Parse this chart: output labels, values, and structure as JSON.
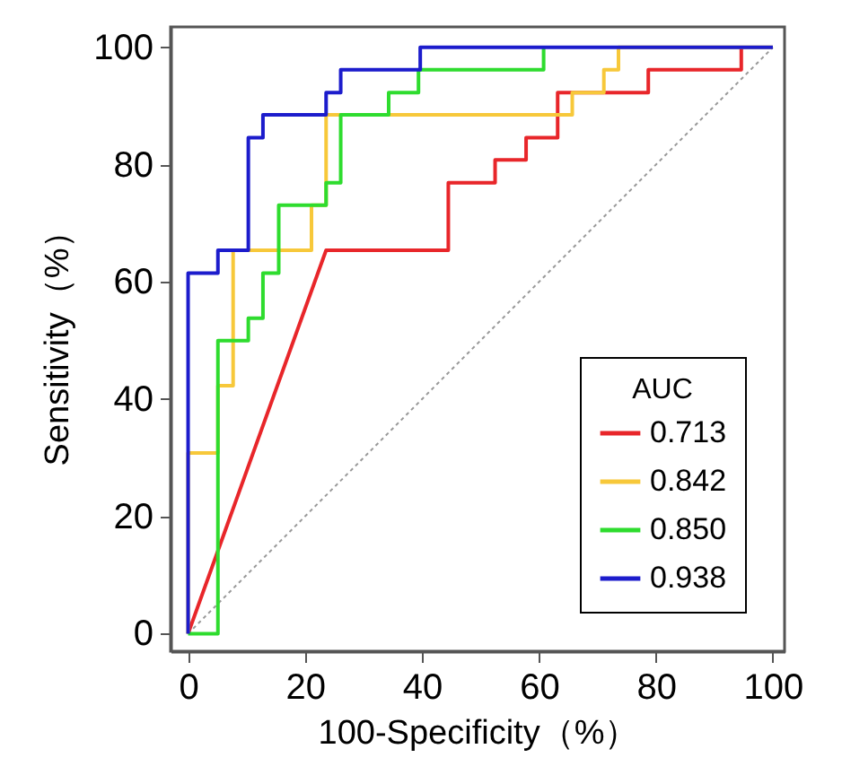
{
  "chart_data": {
    "type": "line",
    "xlabel": "100-Specificity（%）",
    "ylabel": "Sensitivity（%）",
    "legend_title": "AUC",
    "legend": "bottom right",
    "grid": false,
    "marker": "none",
    "xlim": [
      -3,
      102
    ],
    "ylim": [
      -3,
      103.5
    ],
    "xticks": [
      0,
      20,
      40,
      60,
      80,
      100
    ],
    "yticks": [
      0,
      20,
      40,
      60,
      80,
      100
    ],
    "series": [
      {
        "type": "line",
        "color": "#999999",
        "line_style": "dotted",
        "x": [
          0,
          100
        ],
        "values": [
          0,
          100
        ]
      },
      {
        "name": "0.713",
        "color": "#e8262a",
        "line_style": "solid",
        "x": [
          0,
          23.6,
          44.5,
          44.5,
          52.5,
          52.5,
          57.8,
          57.8,
          63.2,
          63.2,
          78.7,
          78.7,
          94.6,
          94.6
        ],
        "values": [
          0,
          65.4,
          65.4,
          76.9,
          76.9,
          80.8,
          80.8,
          84.6,
          84.6,
          92.3,
          92.3,
          96.2,
          96.2,
          100
        ]
      },
      {
        "name": "0.842",
        "color": "#f7c83a",
        "line_style": "solid",
        "x": [
          0,
          0,
          5.1,
          5.1,
          7.7,
          7.7,
          21.1,
          21.1,
          23.6,
          23.6,
          65.7,
          65.7,
          71.1,
          71.1,
          73.6,
          73.6,
          100
        ],
        "values": [
          0,
          30.8,
          30.8,
          42.3,
          42.3,
          65.4,
          65.4,
          73.1,
          73.1,
          88.5,
          88.5,
          92.3,
          92.3,
          96.2,
          96.2,
          100,
          100
        ]
      },
      {
        "name": "0.850",
        "color": "#2edc2e",
        "line_style": "solid",
        "x": [
          0,
          5.1,
          5.1,
          10.3,
          10.3,
          12.8,
          12.8,
          15.5,
          15.5,
          23.6,
          23.6,
          26.1,
          26.1,
          34.3,
          34.3,
          39.4,
          39.4,
          60.8,
          60.8
        ],
        "values": [
          0,
          0,
          50,
          50,
          53.8,
          53.8,
          61.5,
          61.5,
          73.1,
          73.1,
          76.9,
          76.9,
          88.5,
          88.5,
          92.3,
          92.3,
          96.2,
          96.2,
          100
        ]
      },
      {
        "name": "0.938",
        "color": "#1c1ccc",
        "line_style": "solid",
        "x": [
          0,
          0,
          5.1,
          5.1,
          10.3,
          10.3,
          12.8,
          12.8,
          23.6,
          23.6,
          26.1,
          26.1,
          39.7,
          39.7,
          100
        ],
        "values": [
          0,
          61.5,
          61.5,
          65.4,
          65.4,
          84.6,
          84.6,
          88.5,
          88.5,
          92.3,
          92.3,
          96.2,
          96.2,
          100,
          100
        ]
      }
    ]
  }
}
